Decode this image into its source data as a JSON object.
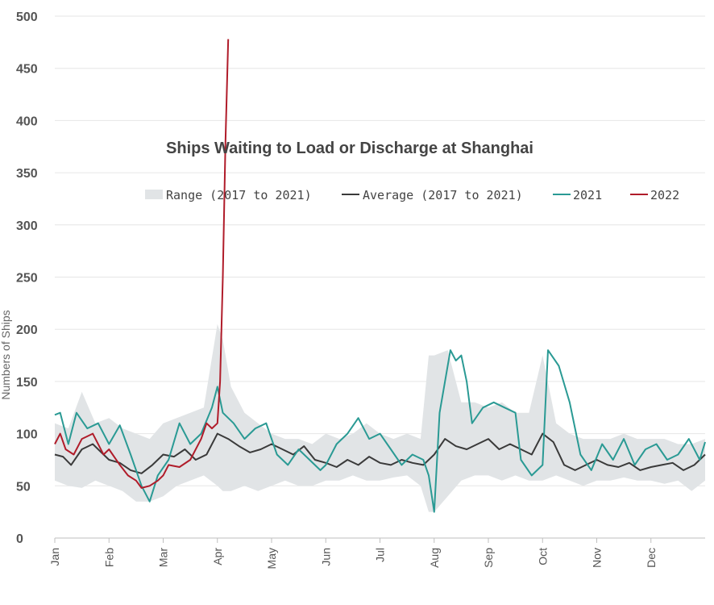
{
  "chart_data": {
    "type": "line",
    "title": "Ships Waiting to Load or Discharge at Shanghai",
    "xlabel": "",
    "ylabel": "Numbers of Ships",
    "ylim": [
      0,
      500
    ],
    "yticks": [
      0,
      50,
      100,
      150,
      200,
      250,
      300,
      350,
      400,
      450,
      500
    ],
    "xlim": [
      0,
      12
    ],
    "xtick_labels": [
      "Jan",
      "Feb",
      "Mar",
      "Apr",
      "May",
      "Jun",
      "Jul",
      "Aug",
      "Sep",
      "Oct",
      "Nov",
      "Dec"
    ],
    "legend": {
      "position": "top-right",
      "entries": [
        {
          "name": "Range (2017 to 2021)",
          "kind": "area",
          "color": "#e1e4e6"
        },
        {
          "name": "Average (2017 to 2021)",
          "kind": "line",
          "color": "#3a3a3a"
        },
        {
          "name": "2021",
          "kind": "line",
          "color": "#2a9a94"
        },
        {
          "name": "2022",
          "kind": "line",
          "color": "#b01c2a"
        }
      ]
    },
    "colors": {
      "range": "#e1e4e6",
      "average": "#3a3a3a",
      "y2021": "#2a9a94",
      "y2022": "#b01c2a",
      "grid": "#e6e6e6",
      "axis": "#bfbfbf"
    },
    "range": {
      "x": [
        0,
        0.25,
        0.5,
        0.75,
        1.0,
        1.25,
        1.5,
        1.75,
        2.0,
        2.25,
        2.5,
        2.75,
        3.0,
        3.1,
        3.25,
        3.5,
        3.75,
        4.0,
        4.25,
        4.5,
        4.75,
        5.0,
        5.25,
        5.5,
        5.75,
        6.0,
        6.25,
        6.5,
        6.75,
        6.9,
        7.0,
        7.25,
        7.5,
        7.75,
        8.0,
        8.25,
        8.5,
        8.75,
        9.0,
        9.25,
        9.5,
        9.75,
        10.0,
        10.25,
        10.5,
        10.75,
        11.0,
        11.25,
        11.5,
        11.75,
        12.0
      ],
      "low": [
        55,
        50,
        48,
        55,
        50,
        45,
        35,
        35,
        40,
        50,
        55,
        60,
        50,
        45,
        45,
        50,
        45,
        50,
        55,
        50,
        50,
        55,
        55,
        60,
        55,
        55,
        58,
        60,
        50,
        25,
        25,
        40,
        55,
        60,
        60,
        55,
        60,
        55,
        55,
        60,
        55,
        50,
        55,
        55,
        58,
        55,
        55,
        52,
        55,
        45,
        55
      ],
      "high": [
        110,
        105,
        140,
        110,
        115,
        105,
        100,
        95,
        110,
        115,
        120,
        125,
        205,
        190,
        145,
        120,
        110,
        100,
        95,
        95,
        90,
        100,
        95,
        100,
        110,
        100,
        95,
        100,
        95,
        175,
        175,
        180,
        130,
        130,
        125,
        130,
        120,
        120,
        175,
        110,
        100,
        95,
        95,
        95,
        100,
        95,
        95,
        95,
        90,
        90,
        95
      ]
    },
    "series": [
      {
        "name": "Average (2017 to 2021)",
        "x": [
          0,
          0.15,
          0.3,
          0.5,
          0.7,
          0.9,
          1.0,
          1.2,
          1.4,
          1.6,
          1.8,
          2.0,
          2.2,
          2.4,
          2.6,
          2.8,
          3.0,
          3.2,
          3.4,
          3.6,
          3.8,
          4.0,
          4.2,
          4.4,
          4.6,
          4.8,
          5.0,
          5.2,
          5.4,
          5.6,
          5.8,
          6.0,
          6.2,
          6.4,
          6.6,
          6.8,
          7.0,
          7.2,
          7.4,
          7.6,
          7.8,
          8.0,
          8.2,
          8.4,
          8.6,
          8.8,
          9.0,
          9.2,
          9.4,
          9.6,
          9.8,
          10.0,
          10.2,
          10.4,
          10.6,
          10.8,
          11.0,
          11.2,
          11.4,
          11.6,
          11.8,
          12.0
        ],
        "values": [
          80,
          78,
          70,
          85,
          90,
          80,
          75,
          72,
          65,
          62,
          70,
          80,
          78,
          85,
          75,
          80,
          100,
          95,
          88,
          82,
          85,
          90,
          85,
          80,
          88,
          75,
          72,
          68,
          75,
          70,
          78,
          72,
          70,
          75,
          72,
          70,
          80,
          95,
          88,
          85,
          90,
          95,
          85,
          90,
          85,
          80,
          100,
          92,
          70,
          65,
          70,
          75,
          70,
          68,
          72,
          65,
          68,
          70,
          72,
          65,
          70,
          80
        ]
      },
      {
        "name": "2021",
        "x": [
          0,
          0.1,
          0.25,
          0.4,
          0.6,
          0.8,
          1.0,
          1.2,
          1.4,
          1.5,
          1.6,
          1.75,
          1.9,
          2.1,
          2.3,
          2.5,
          2.7,
          2.9,
          3.0,
          3.1,
          3.3,
          3.5,
          3.7,
          3.9,
          4.1,
          4.3,
          4.5,
          4.7,
          4.9,
          5.0,
          5.2,
          5.4,
          5.6,
          5.8,
          6.0,
          6.2,
          6.4,
          6.6,
          6.8,
          6.9,
          7.0,
          7.1,
          7.3,
          7.4,
          7.5,
          7.6,
          7.7,
          7.9,
          8.1,
          8.3,
          8.5,
          8.6,
          8.8,
          9.0,
          9.1,
          9.3,
          9.5,
          9.7,
          9.9,
          10.1,
          10.3,
          10.5,
          10.7,
          10.9,
          11.1,
          11.3,
          11.5,
          11.7,
          11.9,
          12.0
        ],
        "values": [
          118,
          120,
          90,
          120,
          105,
          110,
          90,
          108,
          80,
          65,
          50,
          35,
          60,
          75,
          110,
          90,
          100,
          125,
          145,
          120,
          110,
          95,
          105,
          110,
          80,
          70,
          85,
          75,
          65,
          70,
          90,
          100,
          115,
          95,
          100,
          85,
          70,
          80,
          75,
          60,
          25,
          120,
          180,
          170,
          175,
          150,
          110,
          125,
          130,
          125,
          120,
          75,
          60,
          70,
          180,
          165,
          130,
          80,
          65,
          90,
          75,
          95,
          70,
          85,
          90,
          75,
          80,
          95,
          75,
          92
        ]
      },
      {
        "name": "2022",
        "x": [
          0,
          0.1,
          0.2,
          0.35,
          0.5,
          0.7,
          0.9,
          1.0,
          1.2,
          1.35,
          1.5,
          1.6,
          1.75,
          1.9,
          2.0,
          2.1,
          2.3,
          2.5,
          2.7,
          2.8,
          2.9,
          3.0,
          3.05,
          3.1,
          3.15,
          3.2
        ],
        "values": [
          90,
          100,
          85,
          80,
          95,
          100,
          80,
          85,
          70,
          60,
          55,
          48,
          50,
          55,
          60,
          70,
          68,
          75,
          95,
          110,
          105,
          110,
          150,
          250,
          380,
          478
        ]
      }
    ]
  }
}
